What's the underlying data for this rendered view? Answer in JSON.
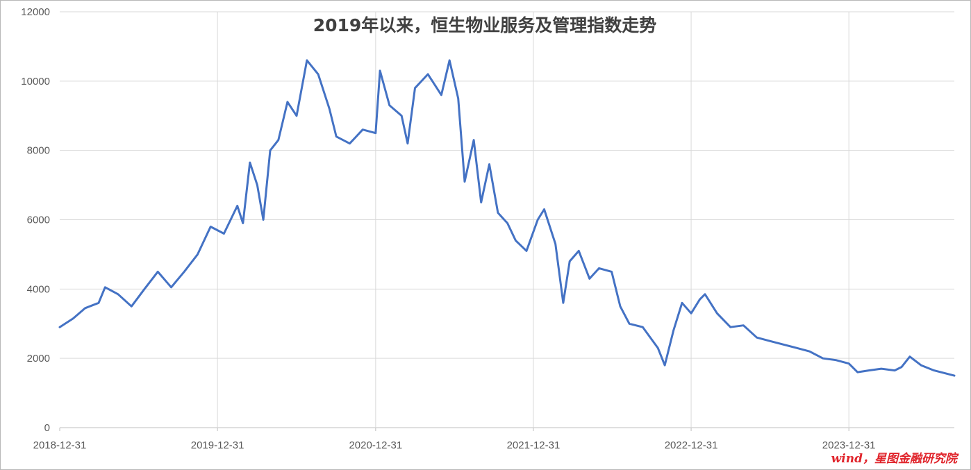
{
  "chart_data": {
    "type": "line",
    "title": "2019年以来，恒生物业服务及管理指数走势",
    "xlabel": "",
    "ylabel": "",
    "ylim": [
      0,
      12000
    ],
    "xlim": [
      "2018-12-31",
      "2024-08-31"
    ],
    "y_ticks": [
      "0",
      "2000",
      "4000",
      "6000",
      "8000",
      "10000",
      "12000"
    ],
    "x_ticks": [
      "2018-12-31",
      "2019-12-31",
      "2020-12-31",
      "2021-12-31",
      "2022-12-31",
      "2023-12-31"
    ],
    "grid": "on",
    "legend": "none",
    "series": [
      {
        "color": "#4472c4",
        "points": [
          [
            "2018-12-31",
            2900
          ],
          [
            "2019-01-31",
            3150
          ],
          [
            "2019-02-28",
            3450
          ],
          [
            "2019-03-31",
            3600
          ],
          [
            "2019-04-15",
            4050
          ],
          [
            "2019-05-15",
            3850
          ],
          [
            "2019-06-15",
            3500
          ],
          [
            "2019-07-15",
            4000
          ],
          [
            "2019-08-15",
            4500
          ],
          [
            "2019-09-15",
            4050
          ],
          [
            "2019-10-15",
            4500
          ],
          [
            "2019-11-15",
            5000
          ],
          [
            "2019-12-15",
            5800
          ],
          [
            "2020-01-15",
            5600
          ],
          [
            "2020-02-15",
            6400
          ],
          [
            "2020-02-28",
            5900
          ],
          [
            "2020-03-15",
            7650
          ],
          [
            "2020-04-01",
            7000
          ],
          [
            "2020-04-15",
            6000
          ],
          [
            "2020-05-01",
            8000
          ],
          [
            "2020-05-20",
            8300
          ],
          [
            "2020-06-10",
            9400
          ],
          [
            "2020-07-01",
            9000
          ],
          [
            "2020-07-25",
            10600
          ],
          [
            "2020-08-20",
            10200
          ],
          [
            "2020-09-15",
            9200
          ],
          [
            "2020-10-01",
            8400
          ],
          [
            "2020-11-01",
            8200
          ],
          [
            "2020-12-01",
            8600
          ],
          [
            "2020-12-31",
            8500
          ],
          [
            "2021-01-10",
            10300
          ],
          [
            "2021-02-01",
            9300
          ],
          [
            "2021-03-01",
            9000
          ],
          [
            "2021-03-15",
            8200
          ],
          [
            "2021-04-01",
            9800
          ],
          [
            "2021-05-01",
            10200
          ],
          [
            "2021-06-01",
            9600
          ],
          [
            "2021-06-20",
            10600
          ],
          [
            "2021-07-10",
            9500
          ],
          [
            "2021-07-25",
            7100
          ],
          [
            "2021-08-15",
            8300
          ],
          [
            "2021-09-01",
            6500
          ],
          [
            "2021-09-20",
            7600
          ],
          [
            "2021-10-10",
            6200
          ],
          [
            "2021-11-01",
            5900
          ],
          [
            "2021-11-20",
            5400
          ],
          [
            "2021-12-15",
            5100
          ],
          [
            "2022-01-10",
            6000
          ],
          [
            "2022-01-25",
            6300
          ],
          [
            "2022-02-20",
            5300
          ],
          [
            "2022-03-10",
            3600
          ],
          [
            "2022-03-25",
            4800
          ],
          [
            "2022-04-15",
            5100
          ],
          [
            "2022-05-10",
            4300
          ],
          [
            "2022-06-01",
            4600
          ],
          [
            "2022-06-30",
            4500
          ],
          [
            "2022-07-20",
            3500
          ],
          [
            "2022-08-10",
            3000
          ],
          [
            "2022-09-10",
            2900
          ],
          [
            "2022-10-15",
            2300
          ],
          [
            "2022-10-31",
            1800
          ],
          [
            "2022-11-20",
            2800
          ],
          [
            "2022-12-10",
            3600
          ],
          [
            "2022-12-31",
            3300
          ],
          [
            "2023-01-20",
            3700
          ],
          [
            "2023-02-01",
            3850
          ],
          [
            "2023-03-01",
            3300
          ],
          [
            "2023-04-01",
            2900
          ],
          [
            "2023-05-01",
            2950
          ],
          [
            "2023-06-01",
            2600
          ],
          [
            "2023-07-01",
            2500
          ],
          [
            "2023-08-01",
            2400
          ],
          [
            "2023-09-01",
            2300
          ],
          [
            "2023-10-01",
            2200
          ],
          [
            "2023-11-01",
            2000
          ],
          [
            "2023-12-01",
            1950
          ],
          [
            "2023-12-31",
            1850
          ],
          [
            "2024-01-20",
            1600
          ],
          [
            "2024-02-15",
            1650
          ],
          [
            "2024-03-15",
            1700
          ],
          [
            "2024-04-15",
            1650
          ],
          [
            "2024-05-01",
            1750
          ],
          [
            "2024-05-20",
            2050
          ],
          [
            "2024-06-15",
            1800
          ],
          [
            "2024-07-15",
            1650
          ],
          [
            "2024-08-31",
            1500
          ]
        ]
      }
    ]
  },
  "source_note": "wind，星图金融研究院"
}
